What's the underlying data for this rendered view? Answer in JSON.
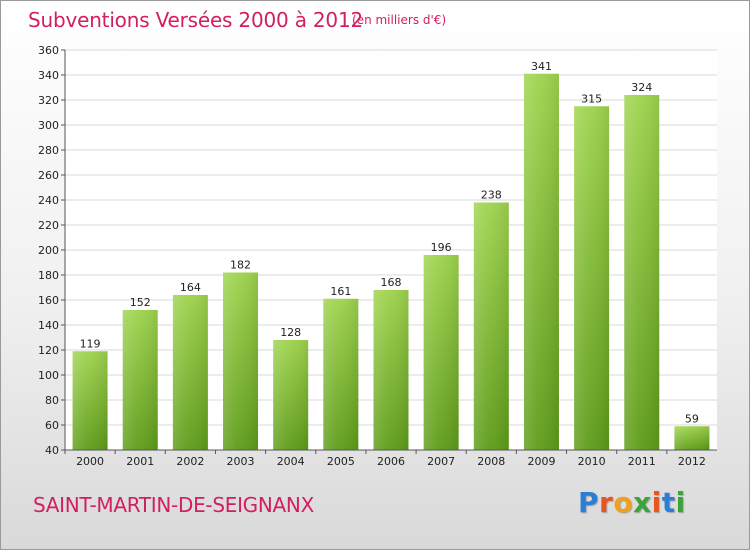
{
  "header": {
    "title": "Subventions Versées 2000 à 2012",
    "subtitle": "(en milliers d'€)"
  },
  "footer": {
    "place": "SAINT-MARTIN-DE-SEIGNANX",
    "logo_text": "Proxiti"
  },
  "colors": {
    "bar_top": "#9fd44e",
    "bar_bottom": "#5e9c19",
    "title": "#d21e63",
    "logo_letters": [
      "#2a7fd4",
      "#e8551e",
      "#f0a020",
      "#3aa43a",
      "#e8551e",
      "#2a7fd4",
      "#3aa43a"
    ]
  },
  "chart_data": {
    "type": "bar",
    "title": "Subventions Versées 2000 à 2012",
    "subtitle": "(en milliers d'€)",
    "categories": [
      "2000",
      "2001",
      "2002",
      "2003",
      "2004",
      "2005",
      "2006",
      "2007",
      "2008",
      "2009",
      "2010",
      "2011",
      "2012"
    ],
    "values": [
      119,
      152,
      164,
      182,
      128,
      161,
      168,
      196,
      238,
      341,
      315,
      324,
      59
    ],
    "ylim": [
      40,
      360
    ],
    "yticks": [
      40,
      60,
      80,
      100,
      120,
      140,
      160,
      180,
      200,
      220,
      240,
      260,
      280,
      300,
      320,
      340,
      360
    ],
    "grid": true,
    "legend": "none"
  }
}
